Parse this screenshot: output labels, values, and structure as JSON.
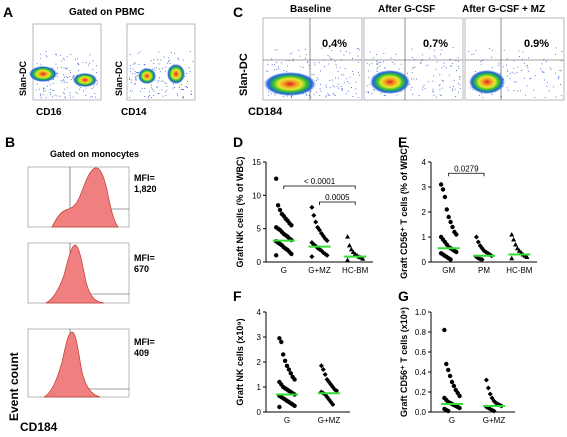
{
  "panels": {
    "A": {
      "letter": "A",
      "header": "Gated on PBMC",
      "plots": [
        {
          "ylabel": "Slan-DC",
          "xlabel": "CD16"
        },
        {
          "ylabel": "Slan-DC",
          "xlabel": "CD14"
        }
      ]
    },
    "B": {
      "letter": "B",
      "header": "Gated on monocytes",
      "ylabel": "Event count",
      "xlabel": "CD184",
      "histograms": [
        {
          "mfi_label": "MFI=",
          "mfi": "1,820"
        },
        {
          "mfi_label": "MFI=",
          "mfi": "670"
        },
        {
          "mfi_label": "MFI=",
          "mfi": "409"
        }
      ]
    },
    "C": {
      "letter": "C",
      "ylabel": "Slan-DC",
      "xlabel": "CD184",
      "plots": [
        {
          "title": "Baseline",
          "pct": "0.4%"
        },
        {
          "title": "After G-CSF",
          "pct": "0.7%"
        },
        {
          "title": "After G-CSF + MZ",
          "pct": "0.9%"
        }
      ]
    },
    "D": {
      "letter": "D"
    },
    "E": {
      "letter": "E"
    },
    "F": {
      "letter": "F"
    },
    "G": {
      "letter": "G"
    }
  },
  "colors": {
    "hist_fill": "#f08080",
    "hist_stroke": "#c0392b",
    "median": "#33dd33",
    "dot": "#000000"
  },
  "chart_data": [
    {
      "panel": "D",
      "type": "scatter",
      "ylabel": "Graft NK cells (% of WBC)",
      "ylim": [
        0,
        15
      ],
      "yticks": [
        0,
        5,
        10,
        15
      ],
      "categories": [
        "G",
        "G+MZ",
        "HC-BM"
      ],
      "median": [
        3.2,
        2.3,
        0.8
      ],
      "series": [
        {
          "values": [
            12.5,
            8.5,
            7.8,
            7.2,
            6.9,
            6.5,
            6.2,
            5.8,
            5.5,
            5.2,
            5.0,
            4.8,
            4.5,
            4.2,
            4.0,
            3.8,
            3.5,
            3.3,
            3.1,
            2.9,
            2.7,
            2.5,
            2.2,
            2.0,
            1.8,
            1.5,
            1.2,
            1.0
          ]
        },
        {
          "values": [
            8.2,
            7.0,
            6.0,
            5.2,
            4.8,
            4.3,
            3.9,
            3.5,
            3.2,
            2.9,
            2.6,
            2.4,
            2.1,
            1.9,
            1.7,
            1.4,
            1.2,
            1.0,
            0.8
          ]
        },
        {
          "values": [
            3.8,
            2.5,
            1.9,
            1.5,
            1.2,
            1.0,
            0.8,
            0.7,
            0.5,
            0.3
          ]
        }
      ],
      "annotations": [
        {
          "text": "< 0.0001",
          "from": 0,
          "to": 2,
          "y": 11.4
        },
        {
          "text": "0.0005",
          "from": 1,
          "to": 2,
          "y": 9.0
        }
      ]
    },
    {
      "panel": "E",
      "type": "scatter",
      "ylabel": "Graft CD56⁺ T cells (% of WBC)",
      "ylim": [
        0,
        4
      ],
      "yticks": [
        0,
        1,
        2,
        3,
        4
      ],
      "categories": [
        "GM",
        "PM",
        "HC-BM"
      ],
      "median": [
        0.55,
        0.25,
        0.3
      ],
      "series": [
        {
          "values": [
            3.1,
            2.9,
            2.6,
            2.1,
            1.8,
            1.6,
            1.4,
            1.2,
            1.1,
            1.0,
            0.9,
            0.8,
            0.7,
            0.6,
            0.55,
            0.5,
            0.45,
            0.4,
            0.35,
            0.3,
            0.25,
            0.2,
            0.15,
            0.1
          ]
        },
        {
          "values": [
            1.0,
            0.8,
            0.65,
            0.55,
            0.45,
            0.4,
            0.35,
            0.3,
            0.25,
            0.2,
            0.15,
            0.12,
            0.1
          ]
        },
        {
          "values": [
            1.1,
            0.9,
            0.7,
            0.55,
            0.45,
            0.38,
            0.3,
            0.25,
            0.2,
            0.15
          ]
        }
      ],
      "annotations": [
        {
          "text": "0.0279",
          "from": 0,
          "to": 1,
          "y": 3.55
        }
      ]
    },
    {
      "panel": "F",
      "type": "scatter",
      "ylabel": "Graft NK cells (x10⁹)",
      "ylim": [
        0,
        4
      ],
      "yticks": [
        0,
        1,
        2,
        3,
        4
      ],
      "categories": [
        "G",
        "G+MZ"
      ],
      "median": [
        0.7,
        0.75
      ],
      "series": [
        {
          "values": [
            2.95,
            2.8,
            2.3,
            2.05,
            1.85,
            1.7,
            1.55,
            1.4,
            1.3,
            1.2,
            1.1,
            1.0,
            0.95,
            0.9,
            0.85,
            0.8,
            0.75,
            0.7,
            0.65,
            0.6,
            0.55,
            0.5,
            0.45,
            0.4,
            0.35,
            0.3,
            0.25,
            0.2
          ]
        },
        {
          "values": [
            1.85,
            1.7,
            1.5,
            1.3,
            1.2,
            1.1,
            1.0,
            0.9,
            0.85,
            0.8,
            0.75,
            0.7,
            0.6,
            0.5,
            0.4,
            0.3
          ]
        }
      ]
    },
    {
      "panel": "G",
      "type": "scatter",
      "ylabel": "Graft CD56⁺ T cells (x10⁹)",
      "ylim": [
        0,
        1
      ],
      "yticks": [
        0.0,
        0.2,
        0.4,
        0.6,
        0.8,
        1.0
      ],
      "categories": [
        "G",
        "G+MZ"
      ],
      "median": [
        0.08,
        0.06
      ],
      "series": [
        {
          "values": [
            0.82,
            0.48,
            0.42,
            0.36,
            0.3,
            0.26,
            0.22,
            0.19,
            0.16,
            0.14,
            0.12,
            0.1,
            0.09,
            0.08,
            0.07,
            0.06,
            0.05,
            0.04,
            0.03,
            0.02,
            0.01
          ]
        },
        {
          "values": [
            0.32,
            0.24,
            0.18,
            0.14,
            0.11,
            0.09,
            0.08,
            0.07,
            0.06,
            0.05,
            0.04,
            0.03,
            0.02,
            0.01
          ]
        }
      ]
    }
  ]
}
